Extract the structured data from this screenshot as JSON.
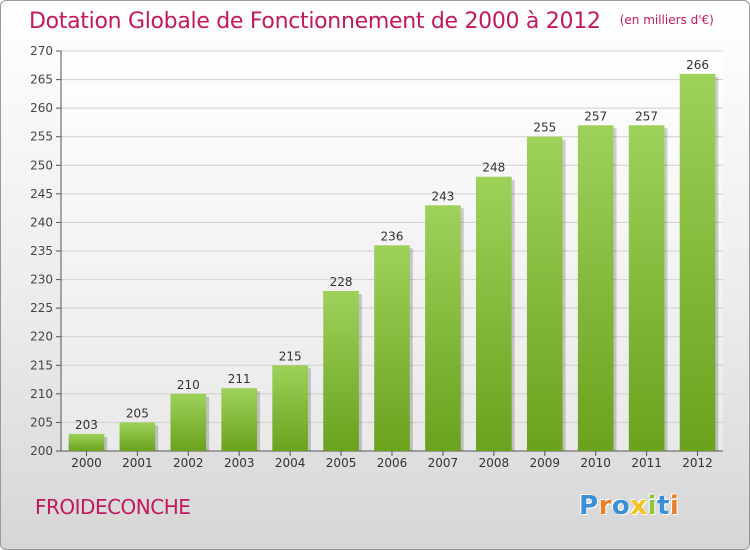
{
  "chart_data": {
    "type": "bar",
    "title": "Dotation Globale de Fonctionnement de 2000 à 2012",
    "unit": "(en milliers d'€)",
    "categories": [
      "2000",
      "2001",
      "2002",
      "2003",
      "2004",
      "2005",
      "2006",
      "2007",
      "2008",
      "2009",
      "2010",
      "2011",
      "2012"
    ],
    "values": [
      203,
      205,
      210,
      211,
      215,
      228,
      236,
      243,
      248,
      255,
      257,
      257,
      266
    ],
    "ylim": [
      200,
      270
    ],
    "ytick_step": 5,
    "grid": true,
    "xlabel": "",
    "ylabel": "",
    "bar_color_top": "#9ed15a",
    "bar_color_bottom": "#6aa21e"
  },
  "footer": {
    "commune": "FROIDECONCHE",
    "logo_letters": [
      "P",
      "r",
      "o",
      "x",
      "i",
      "t",
      "i"
    ],
    "logo_colors": [
      "#3b8fd6",
      "#e8812a",
      "#3b8fd6",
      "#f2c21d",
      "#8cc63f",
      "#3b8fd6",
      "#e8812a"
    ]
  },
  "colors": {
    "title": "#c3185f",
    "grid": "#cfcfcf"
  }
}
